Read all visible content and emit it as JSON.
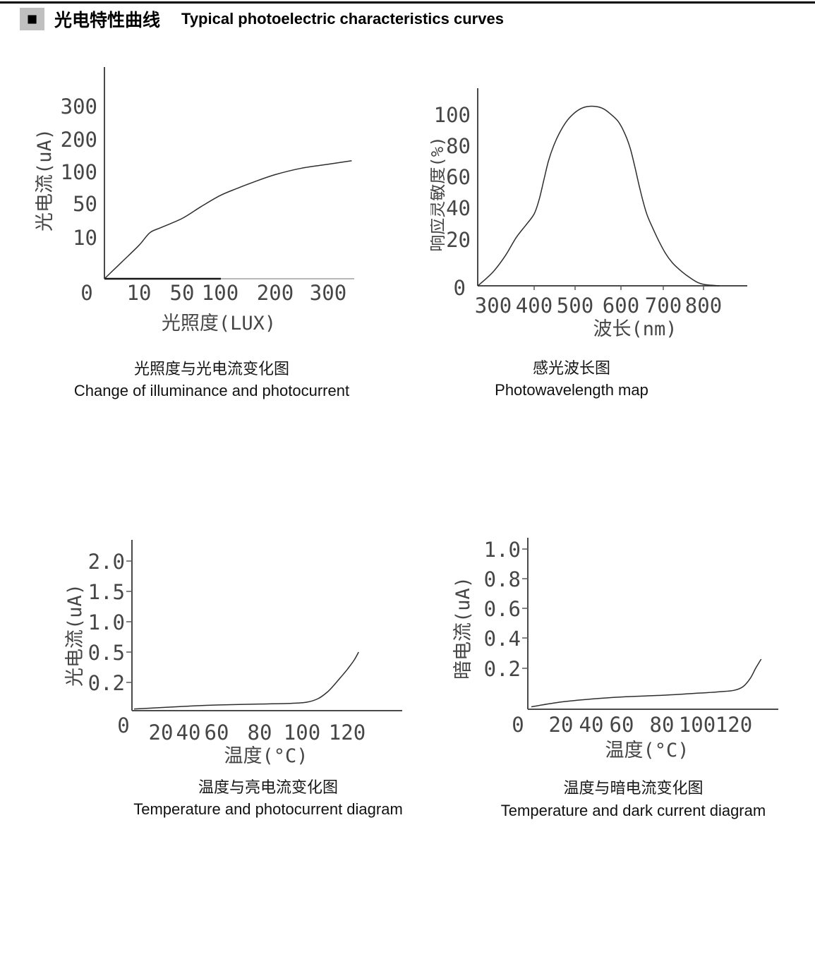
{
  "header": {
    "bullet": "■",
    "title_zh": "光电特性曲线",
    "title_en": "Typical photoelectric characteristics curves"
  },
  "chart_data": [
    {
      "type": "line",
      "caption_zh": "光照度与光电流变化图",
      "caption_en": "Change of illuminance and photocurrent",
      "xlabel": "光照度(LUX)",
      "ylabel": "光电流(uA)",
      "origin_label": "0",
      "x_ticks": [
        "10",
        "50",
        "100",
        "200",
        "300"
      ],
      "y_ticks": [
        "300",
        "200",
        "100",
        "50",
        "10"
      ],
      "axis_style": "non-linear compressed tick spacing, no grid, no legend",
      "series": [
        {
          "name": "光电流 photocurrent (uA) vs illuminance (LUX)",
          "points": [
            [
              0,
              0
            ],
            [
              5,
              4
            ],
            [
              10,
              8
            ],
            [
              20,
              15
            ],
            [
              30,
              21
            ],
            [
              50,
              32
            ],
            [
              75,
              46
            ],
            [
              100,
              62
            ],
            [
              130,
              73
            ],
            [
              160,
              83
            ],
            [
              200,
              95
            ],
            [
              250,
              110
            ],
            [
              300,
              122
            ],
            [
              345,
              133
            ]
          ]
        }
      ]
    },
    {
      "type": "line",
      "caption_zh": "感光波长图",
      "caption_en": "Photowavelength map",
      "xlabel": "波长(nm)",
      "ylabel": "响应灵敏度(%)",
      "x_ticks": [
        "300",
        "400",
        "500",
        "600",
        "700",
        "800"
      ],
      "y_ticks": [
        "100",
        "80",
        "60",
        "40",
        "20",
        "0"
      ],
      "axis_style": "bell-shaped spectral response peaking ~105% near 530nm, no grid, no legend",
      "series": [
        {
          "name": "响应灵敏度 relative spectral sensitivity (%) vs wavelength (nm)",
          "points": [
            [
              263,
              0
            ],
            [
              300,
              6
            ],
            [
              330,
              13
            ],
            [
              356,
              21
            ],
            [
              380,
              29
            ],
            [
              400,
              36
            ],
            [
              412,
              45
            ],
            [
              424,
              58
            ],
            [
              435,
              70
            ],
            [
              448,
              80
            ],
            [
              462,
              88
            ],
            [
              478,
              95
            ],
            [
              495,
              100
            ],
            [
              512,
              103.5
            ],
            [
              528,
              105
            ],
            [
              545,
              105
            ],
            [
              562,
              103.5
            ],
            [
              578,
              100
            ],
            [
              595,
              95
            ],
            [
              610,
              87
            ],
            [
              622,
              78
            ],
            [
              633,
              66
            ],
            [
              643,
              54
            ],
            [
              652,
              44
            ],
            [
              662,
              35
            ],
            [
              675,
              27
            ],
            [
              690,
              19
            ],
            [
              705,
              14
            ],
            [
              722,
              10
            ],
            [
              740,
              7
            ],
            [
              762,
              4
            ],
            [
              785,
              1.5
            ],
            [
              805,
              0.5
            ],
            [
              840,
              0
            ]
          ]
        }
      ]
    },
    {
      "type": "line",
      "caption_zh": "温度与亮电流变化图",
      "caption_en": "Temperature and photocurrent diagram",
      "xlabel": "温度(°C)",
      "ylabel": "光电流(uA)",
      "origin_label": "0",
      "x_ticks": [
        "20",
        "40",
        "60",
        "80",
        "100",
        "120"
      ],
      "y_ticks": [
        "2.0",
        "1.5",
        "1.0",
        "0.5",
        "0.2"
      ],
      "axis_style": "nearly flat to ~100°C then sharp rise to ~0.5uA near 125°C, no grid, no legend",
      "series": [
        {
          "name": "光电流 photocurrent (uA) vs temperature (°C)",
          "points": [
            [
              0,
              0.012
            ],
            [
              20,
              0.022
            ],
            [
              40,
              0.032
            ],
            [
              60,
              0.04
            ],
            [
              80,
              0.047
            ],
            [
              95,
              0.052
            ],
            [
              102,
              0.06
            ],
            [
              107,
              0.085
            ],
            [
              111,
              0.13
            ],
            [
              114,
              0.18
            ],
            [
              117,
              0.25
            ],
            [
              120,
              0.33
            ],
            [
              123,
              0.42
            ],
            [
              125,
              0.5
            ]
          ]
        }
      ]
    },
    {
      "type": "line",
      "caption_zh": "温度与暗电流变化图",
      "caption_en": "Temperature and dark current diagram",
      "xlabel": "温度(°C)",
      "ylabel": "暗电流(uA)",
      "origin_label": "0",
      "x_ticks": [
        "20",
        "40",
        "60",
        "80",
        "100",
        "120"
      ],
      "y_ticks": [
        "1.0",
        "0.8",
        "0.6",
        "0.4",
        "0.2"
      ],
      "axis_style": "nearly flat to ~120°C then sharp rise to ~0.26uA near 135°C, no grid, no legend",
      "series": [
        {
          "name": "暗电流 dark current (uA) vs temperature (°C)",
          "points": [
            [
              0,
              0.012
            ],
            [
              20,
              0.035
            ],
            [
              40,
              0.05
            ],
            [
              60,
              0.06
            ],
            [
              80,
              0.068
            ],
            [
              100,
              0.078
            ],
            [
              112,
              0.085
            ],
            [
              120,
              0.092
            ],
            [
              125,
              0.11
            ],
            [
              129,
              0.15
            ],
            [
              132,
              0.2
            ],
            [
              135,
              0.26
            ]
          ]
        }
      ]
    }
  ]
}
